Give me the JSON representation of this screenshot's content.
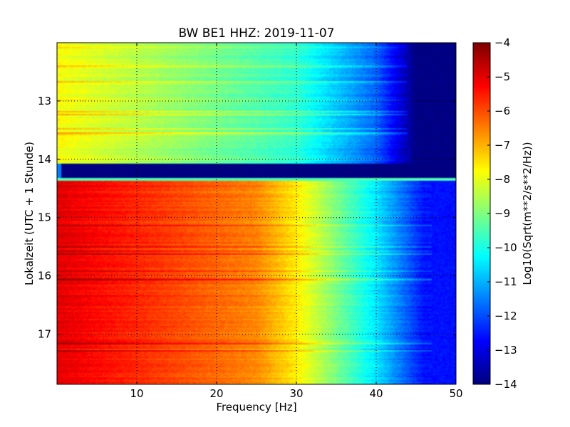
{
  "chart_data": {
    "type": "heatmap",
    "title": "BW BE1 HHZ: 2019-11-07",
    "xlabel": "Frequency [Hz]",
    "ylabel": "Lokalzeit (UTC + 1 Stunde)",
    "xlim": [
      0,
      50
    ],
    "ylim": [
      17.86,
      12.0
    ],
    "x_ticks": [
      10,
      20,
      30,
      40,
      50
    ],
    "y_ticks": [
      13,
      14,
      15,
      16,
      17
    ],
    "grid": true,
    "colormap": "jet",
    "colorbar": {
      "label": "Log10(Sqrt(m**2/s**2/Hz))",
      "range": [
        -14,
        -4
      ],
      "ticks": [
        -4,
        -5,
        -6,
        -7,
        -8,
        -9,
        -10,
        -11,
        -12,
        -13,
        -14
      ]
    },
    "regions": [
      {
        "t_start": 12.0,
        "t_end": 14.07,
        "level_at_0Hz": -7.8,
        "level_at_30Hz": -9.8,
        "level_at_40Hz": -11.8,
        "level_above_45Hz": -14.0
      },
      {
        "t_start": 14.07,
        "t_end": 14.33,
        "level": -14.0
      },
      {
        "t_start": 14.33,
        "t_end": 17.86,
        "level_at_0Hz": -5.0,
        "level_at_25Hz": -6.6,
        "level_at_30Hz": -7.6,
        "level_at_40Hz": -10.5,
        "level_above_46Hz": -12.6
      }
    ]
  }
}
